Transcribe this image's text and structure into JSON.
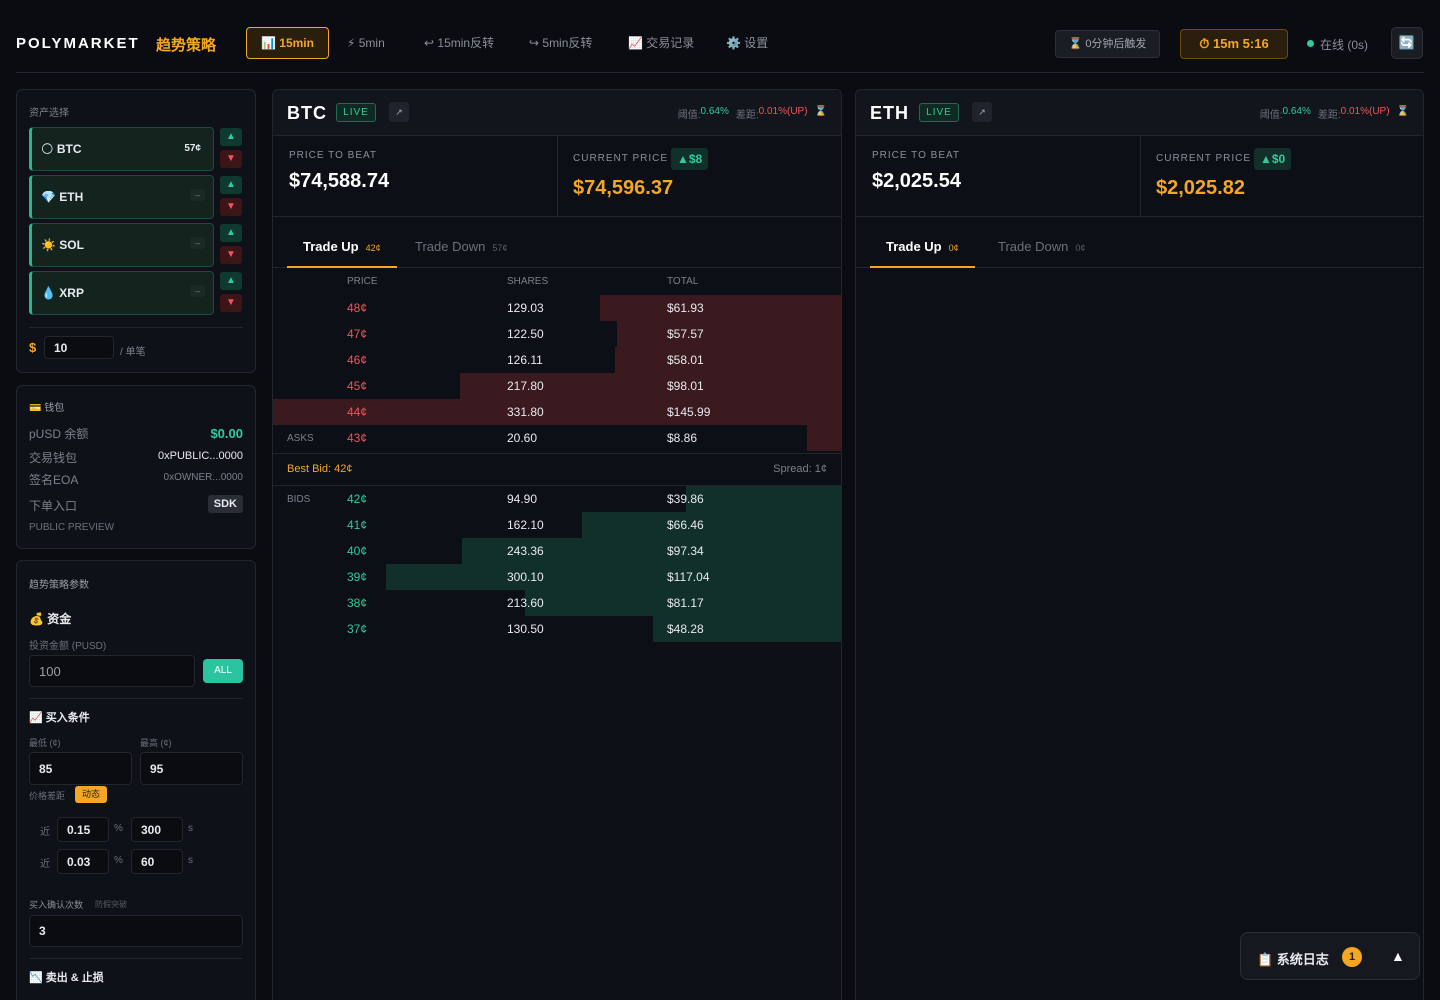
{
  "header": {
    "logo": "POLYMARKET",
    "logo_accent": "趋势策略",
    "tabs": [
      "📊 15min",
      "⚡ 5min",
      "↩ 15min反转",
      "↪ 5min反转",
      "📈 交易记录",
      "⚙️ 设置"
    ],
    "trigger": "⌛ 0分钟后触发",
    "timer": "⏱ 15m 5:16",
    "status": "在线 (0s)",
    "refresh": "🔄"
  },
  "assets": {
    "title": "资产选择",
    "up_button": "▲",
    "down_button": "▼",
    "items": [
      {
        "name": "🌕 BTC",
        "price": "57¢"
      },
      {
        "name": "💎 ETH",
        "price": "–"
      },
      {
        "name": "☀️ SOL",
        "price": "–"
      },
      {
        "name": "💧 XRP",
        "price": "–"
      }
    ],
    "amount_prefix": "$",
    "amount": "10",
    "amount_suffix": "/ 单笔"
  },
  "wallet": {
    "title": "💳 钱包",
    "rows": [
      {
        "label": "pUSD 余额",
        "value": "$0.00"
      },
      {
        "label": "交易钱包",
        "value": "0xPUBLIC...0000"
      },
      {
        "label": "签名EOA",
        "value": "0xOWNER...0000"
      },
      {
        "label": "下单入口",
        "value": "SDK"
      }
    ],
    "footer": "PUBLIC PREVIEW"
  },
  "strategy": {
    "title": "趋势策略参数",
    "funds": {
      "title": "💰 资金",
      "amount_label": "投资金额 (PUSD)",
      "amount": "100",
      "all_button": "ALL"
    },
    "buy": {
      "title": "📈 买入条件",
      "min_label": "最低 (¢)",
      "max_label": "最高 (¢)",
      "min": "85",
      "max": "95",
      "gap_label": "价格差距",
      "gap_badge": "动态",
      "gap_rules": [
        {
          "prefix": "近",
          "percent": "0.15",
          "percent_unit": "%",
          "seconds": "300",
          "seconds_unit": "s"
        },
        {
          "prefix": "近",
          "percent": "0.03",
          "percent_unit": "%",
          "seconds": "60",
          "seconds_unit": "s"
        }
      ],
      "confirm_label": "买入确认次数",
      "confirm_hint": "防假突破",
      "confirm": "3"
    },
    "sell": {
      "title": "📉 卖出 & 止损"
    }
  },
  "markets": [
    {
      "symbol": "BTC",
      "live": "LIVE",
      "open": "↗",
      "threshold_label": "阈值:",
      "threshold": "0.64%",
      "gap_label": "差距:",
      "gap": "0.01%(UP)",
      "wait": "⌛",
      "price_to_beat_label": "PRICE TO BEAT",
      "price_to_beat": "$74,588.74",
      "current_price_label": "CURRENT PRICE",
      "change": "▲$8",
      "current_price": "$74,596.37",
      "tabs": [
        {
          "label": "Trade Up",
          "price": "42¢"
        },
        {
          "label": "Trade Down",
          "price": "57¢"
        }
      ],
      "book": {
        "columns": [
          "PRICE",
          "SHARES",
          "TOTAL"
        ],
        "ask_label": "ASKS",
        "bid_label": "BIDS",
        "best_bid": "Best Bid: 42¢",
        "spread": "Spread: 1¢",
        "asks": [
          {
            "price": "48¢",
            "shares": "129.03",
            "total": {
              "value": 61.93,
              "label": "$61.93"
            }
          },
          {
            "price": "47¢",
            "shares": "122.50",
            "total": {
              "value": 57.57,
              "label": "$57.57"
            }
          },
          {
            "price": "46¢",
            "shares": "126.11",
            "total": {
              "value": 58.01,
              "label": "$58.01"
            }
          },
          {
            "price": "45¢",
            "shares": "217.80",
            "total": {
              "value": 98.01,
              "label": "$98.01"
            }
          },
          {
            "price": "44¢",
            "shares": "331.80",
            "total": {
              "value": 145.99,
              "label": "$145.99"
            }
          },
          {
            "price": "43¢",
            "shares": "20.60",
            "total": {
              "value": 8.86,
              "label": "$8.86"
            }
          }
        ],
        "bids": [
          {
            "price": "42¢",
            "shares": "94.90",
            "total": {
              "value": 39.86,
              "label": "$39.86"
            }
          },
          {
            "price": "41¢",
            "shares": "162.10",
            "total": {
              "value": 66.46,
              "label": "$66.46"
            }
          },
          {
            "price": "40¢",
            "shares": "243.36",
            "total": {
              "value": 97.34,
              "label": "$97.34"
            }
          },
          {
            "price": "39¢",
            "shares": "300.10",
            "total": {
              "value": 117.04,
              "label": "$117.04"
            }
          },
          {
            "price": "38¢",
            "shares": "213.60",
            "total": {
              "value": 81.17,
              "label": "$81.17"
            }
          },
          {
            "price": "37¢",
            "shares": "130.50",
            "total": {
              "value": 48.28,
              "label": "$48.28"
            }
          }
        ]
      }
    },
    {
      "symbol": "ETH",
      "live": "LIVE",
      "open": "↗",
      "threshold_label": "阈值:",
      "threshold": "0.64%",
      "gap_label": "差距:",
      "gap": "0.01%(UP)",
      "wait": "⌛",
      "price_to_beat_label": "PRICE TO BEAT",
      "price_to_beat": "$2,025.54",
      "current_price_label": "CURRENT PRICE",
      "change": "▲$0",
      "current_price": "$2,025.82",
      "tabs": [
        {
          "label": "Trade Up",
          "price": "0¢"
        },
        {
          "label": "Trade Down",
          "price": "0¢"
        }
      ]
    }
  ],
  "log": {
    "title": "📋 系统日志",
    "count": "1",
    "toggle": "▲"
  }
}
